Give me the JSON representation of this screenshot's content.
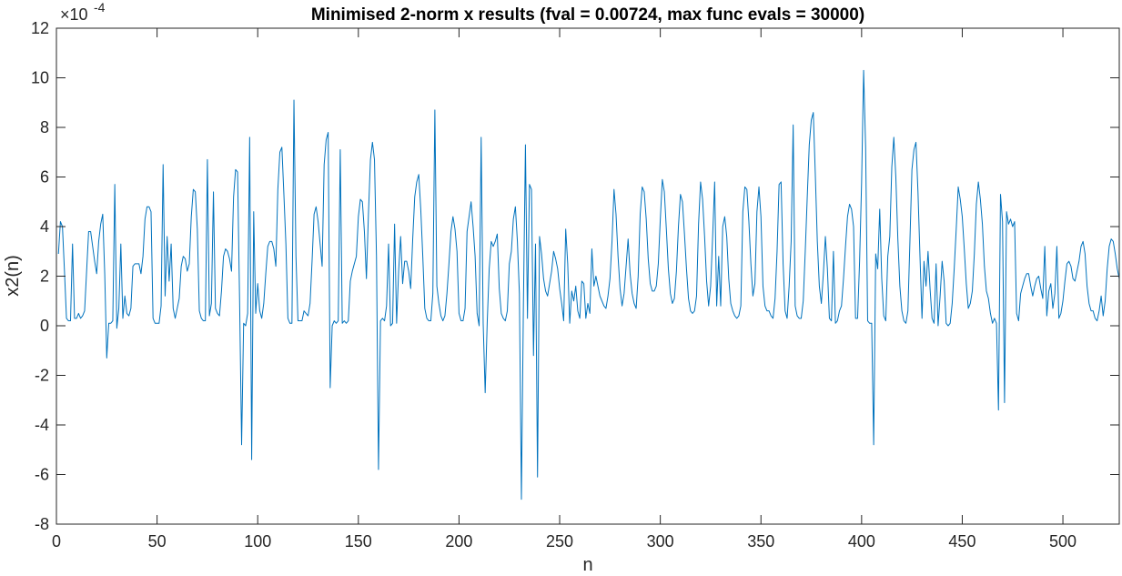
{
  "chart_data": {
    "type": "line",
    "title": "Minimised 2-norm x results (fval = 0.00724, max func evals = 30000)",
    "xlabel": "n",
    "ylabel": "x2(n)",
    "exponent_label": "×10",
    "exponent_power": "-4",
    "xlim": [
      0,
      528
    ],
    "ylim": [
      -8,
      12
    ],
    "y_scale_multiplier": "1e-4",
    "xticks": [
      "0",
      "50",
      "100",
      "150",
      "200",
      "250",
      "300",
      "350",
      "400",
      "450",
      "500"
    ],
    "yticks": [
      "-8",
      "-6",
      "-4",
      "-2",
      "0",
      "2",
      "4",
      "6",
      "8",
      "10",
      "12"
    ],
    "grid": false,
    "box": true,
    "series": [
      {
        "color": "#0072BD",
        "x_start": 1,
        "values": [
          2.9,
          4.2,
          4.0,
          2.2,
          0.3,
          0.2,
          0.2,
          3.3,
          0.3,
          0.3,
          0.5,
          0.3,
          0.4,
          0.6,
          2.2,
          3.8,
          3.8,
          3.2,
          2.6,
          2.1,
          3.4,
          4.1,
          4.5,
          2.1,
          -1.3,
          0.1,
          0.1,
          0.2,
          5.7,
          -0.1,
          0.7,
          3.3,
          0.3,
          1.2,
          0.5,
          0.4,
          0.7,
          2.4,
          2.5,
          2.5,
          2.5,
          2.1,
          2.8,
          4.3,
          4.8,
          4.8,
          4.6,
          0.3,
          0.1,
          0.1,
          0.1,
          0.8,
          6.5,
          1.2,
          3.6,
          1.8,
          3.3,
          0.7,
          0.3,
          0.7,
          1.1,
          2.4,
          2.8,
          2.7,
          2.2,
          2.5,
          4.4,
          5.5,
          5.4,
          3.9,
          0.6,
          0.3,
          0.2,
          0.2,
          6.7,
          0.4,
          0.9,
          5.4,
          0.7,
          0.5,
          0.4,
          1.4,
          2.8,
          3.1,
          3.0,
          2.7,
          2.2,
          5.2,
          6.3,
          6.2,
          1.0,
          -4.8,
          0.1,
          0.0,
          0.5,
          7.6,
          -5.4,
          4.6,
          0.5,
          1.7,
          0.6,
          0.3,
          0.9,
          2.1,
          3.2,
          3.4,
          3.4,
          3.1,
          2.4,
          5.5,
          7.0,
          7.2,
          5.3,
          3.3,
          0.3,
          0.1,
          0.1,
          9.1,
          2.8,
          0.2,
          0.2,
          0.2,
          0.6,
          0.5,
          0.4,
          0.9,
          2.6,
          4.5,
          4.8,
          4.2,
          3.3,
          2.4,
          6.5,
          7.5,
          7.8,
          -2.5,
          0.0,
          0.2,
          0.1,
          0.2,
          7.1,
          0.1,
          0.2,
          0.1,
          0.2,
          1.8,
          2.2,
          2.5,
          2.8,
          4.4,
          5.1,
          5.0,
          3.8,
          1.9,
          4.5,
          6.7,
          7.4,
          6.7,
          2.8,
          -5.8,
          0.2,
          0.3,
          0.2,
          0.8,
          3.3,
          0.0,
          0.1,
          4.1,
          0.1,
          2.2,
          3.6,
          1.7,
          2.6,
          2.6,
          2.2,
          1.5,
          3.5,
          5.2,
          5.8,
          6.1,
          4.7,
          2.8,
          0.7,
          0.3,
          0.2,
          0.2,
          1.3,
          8.7,
          1.6,
          0.9,
          0.4,
          0.2,
          0.4,
          1.3,
          2.5,
          3.8,
          4.4,
          3.9,
          3.0,
          0.5,
          0.2,
          0.2,
          0.7,
          3.8,
          4.4,
          5.0,
          4.0,
          2.8,
          0.5,
          0.0,
          7.6,
          0.1,
          -2.7,
          0.1,
          2.3,
          3.4,
          3.2,
          3.4,
          3.7,
          1.5,
          0.5,
          0.3,
          0.2,
          0.6,
          2.5,
          3.0,
          4.3,
          4.8,
          3.4,
          1.3,
          -7.0,
          0.9,
          7.3,
          0.3,
          5.7,
          5.5,
          -1.2,
          3.3,
          -6.1,
          3.6,
          2.9,
          1.9,
          1.4,
          1.2,
          1.7,
          2.2,
          3.0,
          2.7,
          2.3,
          1.5,
          0.9,
          0.2,
          3.9,
          2.5,
          0.1,
          1.4,
          1.0,
          1.6,
          0.6,
          0.3,
          1.8,
          1.7,
          0.3,
          0.9,
          0.5,
          3.1,
          1.6,
          2.0,
          1.6,
          1.2,
          1.0,
          0.8,
          0.7,
          1.2,
          1.9,
          3.4,
          5.5,
          4.5,
          2.8,
          1.5,
          0.8,
          1.3,
          2.4,
          3.5,
          2.1,
          1.3,
          0.9,
          0.7,
          2.0,
          4.5,
          5.6,
          5.4,
          4.3,
          2.7,
          1.7,
          1.4,
          1.4,
          1.6,
          2.5,
          4.3,
          5.9,
          5.4,
          3.9,
          2.3,
          1.3,
          0.9,
          1.1,
          2.2,
          4.0,
          5.3,
          5.0,
          3.7,
          2.3,
          1.1,
          0.6,
          0.5,
          0.6,
          1.2,
          4.1,
          5.8,
          5.1,
          3.6,
          1.8,
          0.8,
          1.6,
          3.6,
          5.8,
          0.8,
          2.8,
          0.8,
          4.0,
          4.4,
          3.6,
          1.9,
          0.9,
          0.6,
          0.4,
          0.3,
          0.4,
          0.8,
          4.6,
          5.6,
          5.5,
          4.2,
          2.5,
          1.2,
          1.7,
          4.6,
          5.6,
          4.4,
          1.6,
          0.8,
          0.6,
          0.6,
          0.4,
          0.3,
          1.1,
          3.0,
          5.7,
          5.8,
          2.5,
          0.6,
          0.3,
          1.6,
          3.4,
          8.1,
          0.8,
          0.4,
          0.3,
          0.3,
          1.0,
          3.0,
          5.2,
          7.3,
          8.3,
          8.6,
          6.1,
          3.4,
          1.6,
          0.9,
          2.1,
          3.6,
          2.3,
          0.3,
          0.2,
          3.0,
          0.1,
          0.2,
          0.6,
          0.8,
          1.9,
          3.2,
          4.4,
          4.9,
          4.7,
          4.0,
          0.3,
          0.3,
          2.6,
          5.8,
          10.3,
          7.2,
          0.2,
          0.1,
          0.1,
          -4.8,
          2.9,
          2.3,
          4.7,
          1.9,
          0.4,
          0.2,
          2.8,
          3.6,
          6.4,
          7.6,
          6.0,
          3.5,
          1.6,
          0.6,
          0.2,
          0.1,
          0.6,
          3.4,
          6.3,
          7.1,
          7.4,
          5.4,
          2.8,
          0.3,
          2.6,
          1.6,
          3.0,
          1.5,
          0.3,
          0.1,
          2.5,
          0.0,
          1.2,
          2.6,
          1.8,
          0.1,
          0.0,
          0.1,
          0.9,
          2.3,
          3.9,
          5.6,
          5.1,
          4.4,
          3.1,
          1.7,
          0.7,
          0.9,
          1.4,
          2.9,
          4.9,
          5.8,
          5.1,
          4.1,
          2.4,
          1.4,
          1.1,
          0.5,
          0.1,
          0.3,
          0.1,
          -3.4,
          5.3,
          4.2,
          -3.1,
          4.6,
          4.1,
          4.3,
          4.0,
          4.2,
          0.5,
          0.2,
          1.3,
          1.6,
          1.9,
          2.1,
          2.1,
          1.6,
          1.2,
          1.6,
          1.9,
          2.0,
          1.5,
          1.1,
          3.2,
          0.4,
          1.4,
          1.7,
          0.7,
          1.3,
          3.2,
          0.3,
          0.5,
          1.0,
          1.8,
          2.5,
          2.6,
          2.4,
          1.9,
          1.8,
          2.2,
          2.6,
          3.2,
          3.4,
          2.9,
          1.6,
          0.9,
          0.6,
          0.6,
          0.3,
          0.2,
          0.6,
          1.2,
          0.4,
          1.0,
          2.3,
          3.2,
          3.5,
          3.4,
          2.9,
          2.3,
          1.9
        ]
      }
    ]
  }
}
